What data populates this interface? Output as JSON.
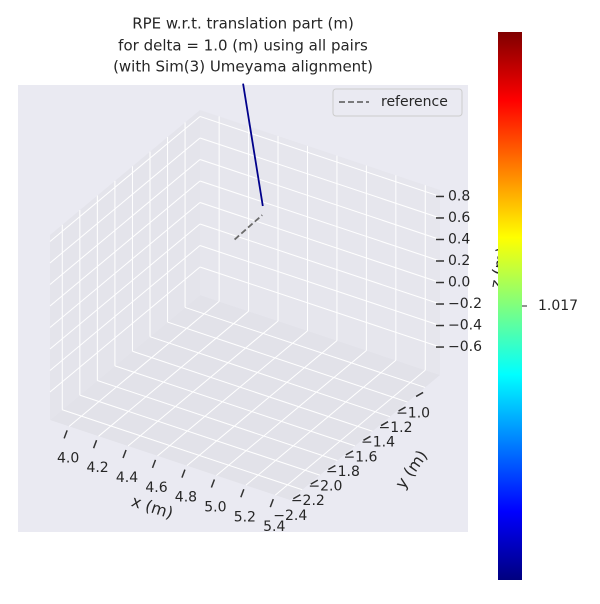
{
  "chart_data": {
    "type": "line3d",
    "title": [
      "RPE w.r.t. translation part (m)",
      "for delta = 1.0 (m) using all pairs",
      "(with Sim(3) Umeyama alignment)"
    ],
    "x_label": "x (m)",
    "y_label": "y (m)",
    "z_label": "z (m)",
    "xlim": [
      3.87,
      5.5
    ],
    "ylim": [
      -2.54,
      -0.83
    ],
    "zlim": [
      -0.86,
      0.86
    ],
    "xticks": [
      {
        "value": 4.0,
        "label": "4.0"
      },
      4.2,
      4.4,
      4.6,
      4.8,
      {
        "value": 5.0,
        "label": "5.0"
      },
      5.2,
      5.4
    ],
    "yticks": [
      {
        "value": -2.4,
        "label": "−2.4"
      },
      {
        "value": -2.2,
        "label": "−2.2"
      },
      {
        "value": -2.0,
        "label": "−2.0"
      },
      {
        "value": -1.8,
        "label": "−1.8"
      },
      {
        "value": -1.6,
        "label": "−1.6"
      },
      {
        "value": -1.4,
        "label": "−1.4"
      },
      {
        "value": -1.2,
        "label": "−1.2"
      },
      {
        "value": -1.0,
        "label": "−1.0"
      }
    ],
    "zticks": [
      {
        "value": -0.6,
        "label": "−0.6"
      },
      {
        "value": -0.4,
        "label": "−0.4"
      },
      {
        "value": -0.2,
        "label": "−0.2"
      },
      {
        "value": 0.0,
        "label": "0.0"
      },
      0.2,
      0.4,
      0.6,
      0.8
    ],
    "grid": true,
    "legend": "upper right",
    "series": [
      {
        "name": "reference",
        "color": "#6b6b6b",
        "dashed": true,
        "x": [
          4.51,
          4.65
        ],
        "y": [
          -1.51,
          -1.43
        ],
        "z": [
          0.41,
          0.647
        ]
      },
      {
        "color": "#00008b",
        "x": [
          4.654,
          4.52
        ],
        "y": [
          -1.43,
          -1.43
        ],
        "z": [
          0.733,
          1.81
        ]
      }
    ],
    "colorbar": {
      "colormap": "jet",
      "clim": [
        0.917,
        1.117
      ],
      "ticks": [
        1.017
      ]
    }
  }
}
